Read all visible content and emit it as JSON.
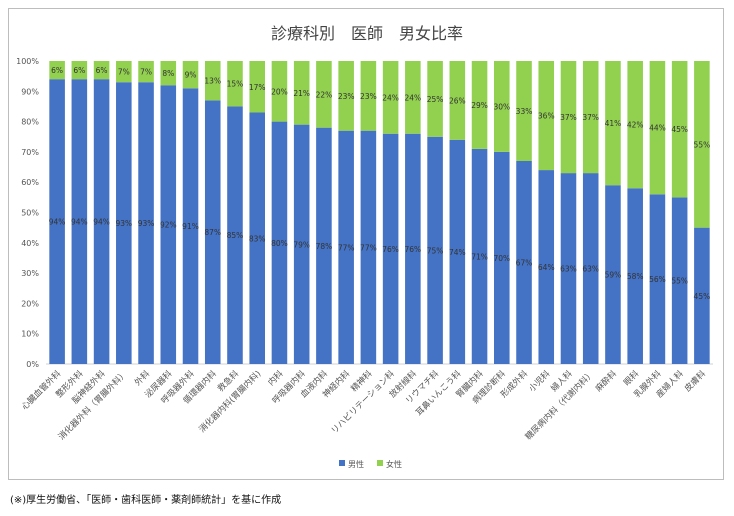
{
  "chart_data": {
    "type": "bar",
    "stacked": true,
    "percent": true,
    "title": "診療科別　医師　男女比率",
    "xlabel": "",
    "ylabel": "",
    "ylim": [
      0,
      100
    ],
    "yticks": [
      "0%",
      "10%",
      "20%",
      "30%",
      "40%",
      "50%",
      "60%",
      "70%",
      "80%",
      "90%",
      "100%"
    ],
    "grid": false,
    "legend_position": "bottom",
    "categories": [
      "心臓血管外科",
      "整形外科",
      "脳神経外科",
      "消化器外科（胃腸外科）",
      "外科",
      "泌尿器科",
      "呼吸器外科",
      "循環器内科",
      "救急科",
      "消化器内科(胃腸内科)",
      "内科",
      "呼吸器内科",
      "血液内科",
      "神経内科",
      "精神科",
      "リハビリテーション科",
      "放射線科",
      "リウマチ科",
      "耳鼻いんこう科",
      "腎臓内科",
      "病理診断科",
      "形成外科",
      "小児科",
      "婦人科",
      "糖尿病内科（代謝内科）",
      "麻酔科",
      "眼科",
      "乳腺外科",
      "産婦人科",
      "皮膚科"
    ],
    "series": [
      {
        "name": "男性",
        "color": "#4472c4",
        "values": [
          94,
          94,
          94,
          93,
          93,
          92,
          91,
          87,
          85,
          83,
          80,
          79,
          78,
          77,
          77,
          76,
          76,
          75,
          74,
          71,
          70,
          67,
          64,
          63,
          63,
          59,
          58,
          56,
          55,
          45
        ]
      },
      {
        "name": "女性",
        "color": "#92d050",
        "values": [
          6,
          6,
          6,
          7,
          7,
          8,
          9,
          13,
          15,
          17,
          20,
          21,
          22,
          23,
          23,
          24,
          24,
          25,
          26,
          29,
          30,
          33,
          36,
          37,
          37,
          41,
          42,
          44,
          45,
          55
        ]
      }
    ]
  },
  "footnote": "(※)厚生労働省、「医師・歯科医師・薬剤師統計」を基に作成"
}
